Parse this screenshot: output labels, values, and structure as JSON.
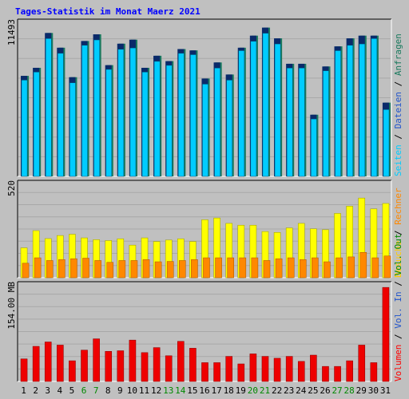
{
  "title": "Tages-Statistik im Monat Maerz 2021",
  "colors": {
    "background": "#c0c0c0",
    "panel": "#c0c0c0",
    "title": "#0000ff",
    "anfragen": "#1a7a5e",
    "dateien": "#00ccff",
    "seiten": "#00e5ff",
    "besuche": "#ffff00",
    "rechner": "#ff8800",
    "vol_in": "#2255cc",
    "vol_out": "#008800",
    "volumen": "#ff0000",
    "weekend_label": "#008800"
  },
  "x_labels": [
    "1",
    "2",
    "3",
    "4",
    "5",
    "6",
    "7",
    "8",
    "9",
    "10",
    "11",
    "12",
    "13",
    "14",
    "15",
    "16",
    "17",
    "18",
    "19",
    "20",
    "21",
    "22",
    "23",
    "24",
    "25",
    "26",
    "27",
    "28",
    "29",
    "30",
    "31"
  ],
  "weekend_days": [
    6,
    7,
    13,
    14,
    20,
    21,
    27,
    28
  ],
  "panel_labels": {
    "top_max": "11493",
    "mid_max": "520",
    "bottom_max": "154.00 MB"
  },
  "legends": {
    "top": [
      {
        "text": "Anfragen",
        "color": "#1a7a5e"
      },
      {
        "text": "Dateien",
        "color": "#2255cc"
      },
      {
        "text": "Seiten",
        "color": "#00ccff"
      }
    ],
    "mid": [
      {
        "text": "Besuche",
        "color": "#ffcc00"
      },
      {
        "text": "Rechner",
        "color": "#ff8800"
      }
    ],
    "bottom": [
      {
        "text": "Volumen",
        "color": "#ff0000"
      },
      {
        "text": "Vol. In",
        "color": "#2255cc"
      },
      {
        "text": "Vol. Out",
        "color": "#008800"
      }
    ]
  },
  "chart_data": [
    {
      "type": "bar",
      "panel": "top",
      "categories": [
        "1",
        "2",
        "3",
        "4",
        "5",
        "6",
        "7",
        "8",
        "9",
        "10",
        "11",
        "12",
        "13",
        "14",
        "15",
        "16",
        "17",
        "18",
        "19",
        "20",
        "21",
        "22",
        "23",
        "24",
        "25",
        "26",
        "27",
        "28",
        "29",
        "30",
        "31"
      ],
      "ylim": [
        0,
        11493
      ],
      "series": [
        {
          "name": "Anfragen",
          "values": [
            7500,
            8100,
            10700,
            9600,
            7400,
            10100,
            10600,
            8300,
            9900,
            10200,
            8100,
            9000,
            8600,
            9500,
            9400,
            7300,
            8500,
            7600,
            9600,
            10500,
            11100,
            10300,
            8400,
            8400,
            4600,
            8200,
            9700,
            10300,
            10500,
            10500,
            5500
          ]
        },
        {
          "name": "Dateien",
          "values": [
            7500,
            8100,
            10700,
            9600,
            7400,
            10100,
            10600,
            8300,
            9900,
            10200,
            8100,
            9000,
            8600,
            9500,
            9400,
            7300,
            8500,
            7600,
            9600,
            10500,
            11100,
            10300,
            8400,
            8400,
            4600,
            8200,
            9700,
            10300,
            10500,
            10500,
            5500
          ]
        },
        {
          "name": "Seiten",
          "values": [
            7300,
            7900,
            10400,
            9300,
            7100,
            9900,
            10300,
            8100,
            9600,
            9700,
            7900,
            8700,
            8400,
            9300,
            9200,
            7000,
            8200,
            7300,
            9500,
            10200,
            10800,
            10000,
            8200,
            8200,
            4400,
            8000,
            9500,
            9900,
            10000,
            10400,
            5100
          ]
        }
      ]
    },
    {
      "type": "bar",
      "panel": "mid",
      "categories": [
        "1",
        "2",
        "3",
        "4",
        "5",
        "6",
        "7",
        "8",
        "9",
        "10",
        "11",
        "12",
        "13",
        "14",
        "15",
        "16",
        "17",
        "18",
        "19",
        "20",
        "21",
        "22",
        "23",
        "24",
        "25",
        "26",
        "27",
        "28",
        "29",
        "30",
        "31"
      ],
      "ylim": [
        0,
        520
      ],
      "series": [
        {
          "name": "Besuche",
          "values": [
            165,
            260,
            216,
            233,
            240,
            220,
            210,
            205,
            215,
            180,
            220,
            200,
            208,
            215,
            200,
            320,
            330,
            300,
            290,
            290,
            255,
            250,
            275,
            300,
            270,
            265,
            355,
            395,
            440,
            380,
            410
          ]
        },
        {
          "name": "Rechner",
          "values": [
            80,
            110,
            95,
            100,
            105,
            108,
            95,
            85,
            95,
            95,
            100,
            88,
            90,
            95,
            100,
            110,
            110,
            110,
            110,
            110,
            95,
            105,
            110,
            100,
            110,
            88,
            110,
            115,
            140,
            110,
            120
          ]
        }
      ]
    },
    {
      "type": "bar",
      "panel": "bottom",
      "categories": [
        "1",
        "2",
        "3",
        "4",
        "5",
        "6",
        "7",
        "8",
        "9",
        "10",
        "11",
        "12",
        "13",
        "14",
        "15",
        "16",
        "17",
        "18",
        "19",
        "20",
        "21",
        "22",
        "23",
        "24",
        "25",
        "26",
        "27",
        "28",
        "29",
        "30",
        "31"
      ],
      "ylim": [
        0,
        154
      ],
      "series": [
        {
          "name": "Volumen",
          "values": [
            36,
            56,
            63,
            58,
            33,
            50,
            68,
            48,
            49,
            66,
            46,
            54,
            41,
            64,
            53,
            30,
            30,
            40,
            28,
            44,
            40,
            37,
            40,
            32,
            42,
            24,
            24,
            33,
            58,
            30,
            150
          ]
        }
      ]
    }
  ]
}
